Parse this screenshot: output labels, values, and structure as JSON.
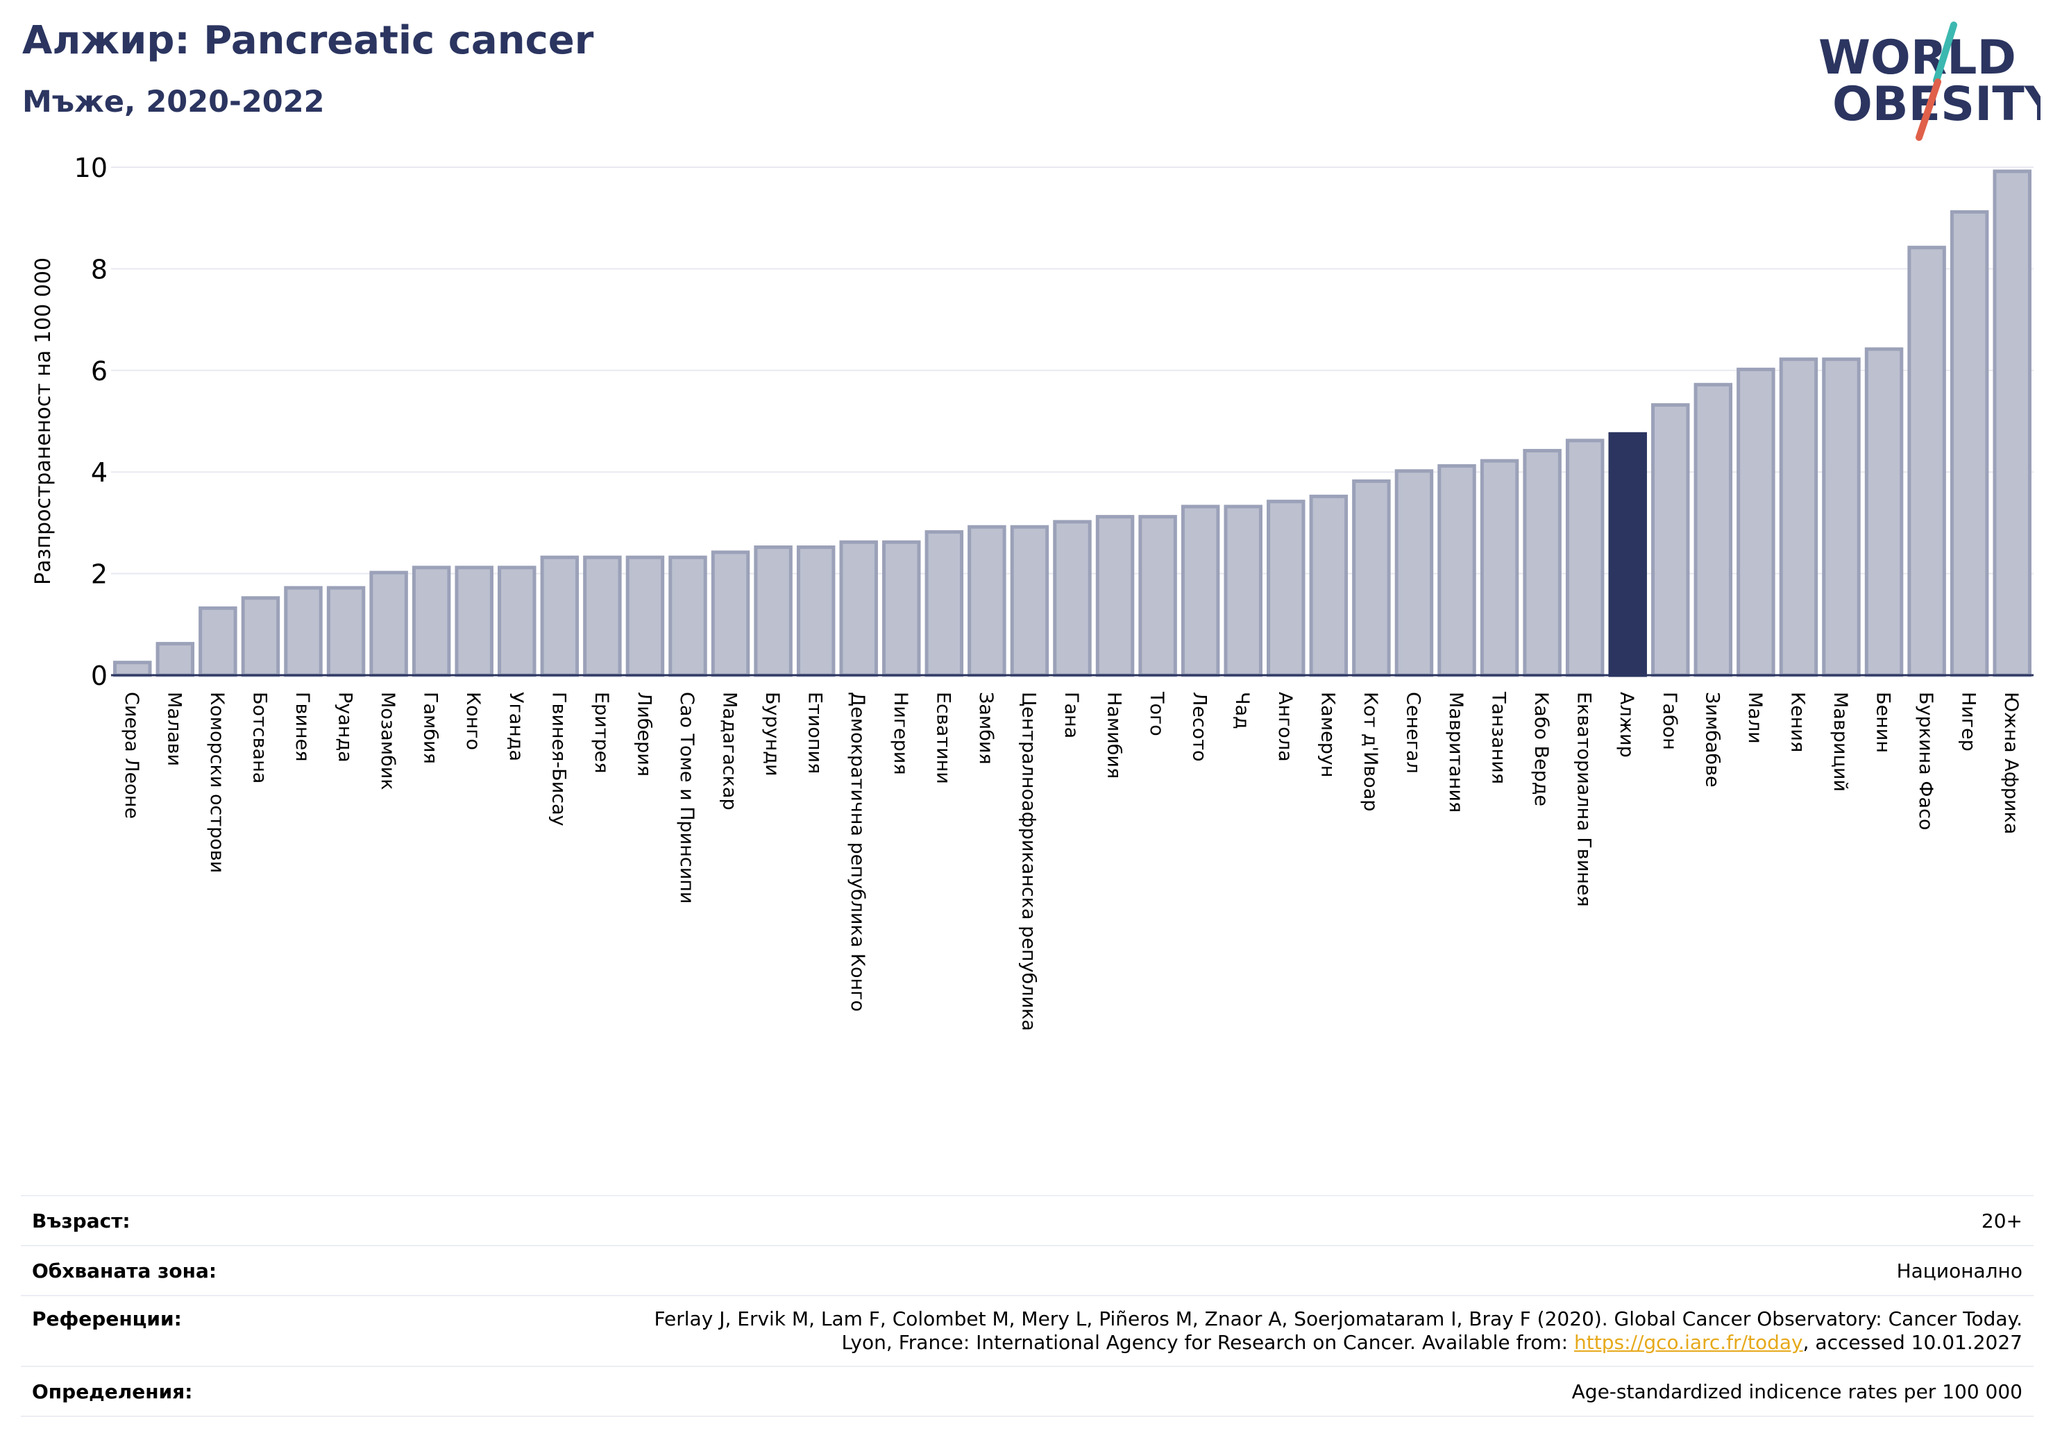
{
  "header": {
    "title": "Алжир: Pancreatic cancer",
    "subtitle": "Мъже, 2020-2022"
  },
  "logo": {
    "line1": "WORLD",
    "line2": "OBESITY",
    "colors": {
      "text": "#2b3560",
      "slash_teal": "#3bb8b0",
      "slash_red": "#e0604a"
    }
  },
  "colors": {
    "bar_fill": "#bcc0cf",
    "bar_stroke": "#9ba1b8",
    "highlight": "#2b3560",
    "grid": "#e8e9f0",
    "axis": "#2b3560"
  },
  "chart_data": {
    "type": "bar",
    "ylabel": "Разпространеност  на 100 000",
    "xlabel": "",
    "ylim": [
      0,
      10
    ],
    "yticks": [
      0,
      2,
      4,
      6,
      8,
      10
    ],
    "grid": true,
    "highlight": "Алжир",
    "categories": [
      "Сиера Леоне",
      "Малави",
      "Коморски острови",
      "Ботсвана",
      "Гвинея",
      "Руанда",
      "Мозамбик",
      "Гамбия",
      "Конго",
      "Уганда",
      "Гвинея-Бисау",
      "Еритрея",
      "Либерия",
      "Сао Томе и Принсипи",
      "Мадагаскар",
      "Бурунди",
      "Етиопия",
      "Демократична република Конго",
      "Нигерия",
      "Есватини",
      "Замбия",
      "Централноафриканска република",
      "Гана",
      "Намибия",
      "Того",
      "Лесото",
      "Чад",
      "Ангола",
      "Камерун",
      "Кот д'Ивоар",
      "Сенегал",
      "Мавритания",
      "Танзания",
      "Кабо Верде",
      "Екваториална Гвинея",
      "Алжир",
      "Габон",
      "Зимбабве",
      "Мали",
      "Кения",
      "Мавриций",
      "Бенин",
      "Буркина Фасо",
      "Нигер",
      "Южна Африка"
    ],
    "values": [
      0.25,
      0.62,
      1.32,
      1.52,
      1.72,
      1.72,
      2.02,
      2.12,
      2.12,
      2.12,
      2.32,
      2.32,
      2.32,
      2.32,
      2.42,
      2.52,
      2.52,
      2.62,
      2.62,
      2.82,
      2.92,
      2.92,
      3.02,
      3.12,
      3.12,
      3.32,
      3.32,
      3.42,
      3.52,
      3.82,
      4.02,
      4.12,
      4.22,
      4.42,
      4.62,
      4.75,
      5.32,
      5.72,
      6.02,
      6.22,
      6.22,
      6.42,
      8.42,
      9.12,
      9.92
    ]
  },
  "footer": {
    "rows": [
      {
        "label": "Възраст:",
        "value": "20+"
      },
      {
        "label": "Обхваната зона:",
        "value": "Национално"
      },
      {
        "label": "Референции:",
        "value_line1": "Ferlay J, Ervik M, Lam F, Colombet M, Mery L, Piñeros M, Znaor A, Soerjomataram I, Bray F (2020). Global Cancer Observatory: Cancer Today.",
        "value_line2_pre": "Lyon, France: International Agency for Research on Cancer. Available from: ",
        "value_link": "https://gco.iarc.fr/today",
        "value_line2_post": ", accessed 10.01.2027"
      },
      {
        "label": "Определения:",
        "value": "Age-standardized indicence rates per 100 000"
      }
    ]
  }
}
